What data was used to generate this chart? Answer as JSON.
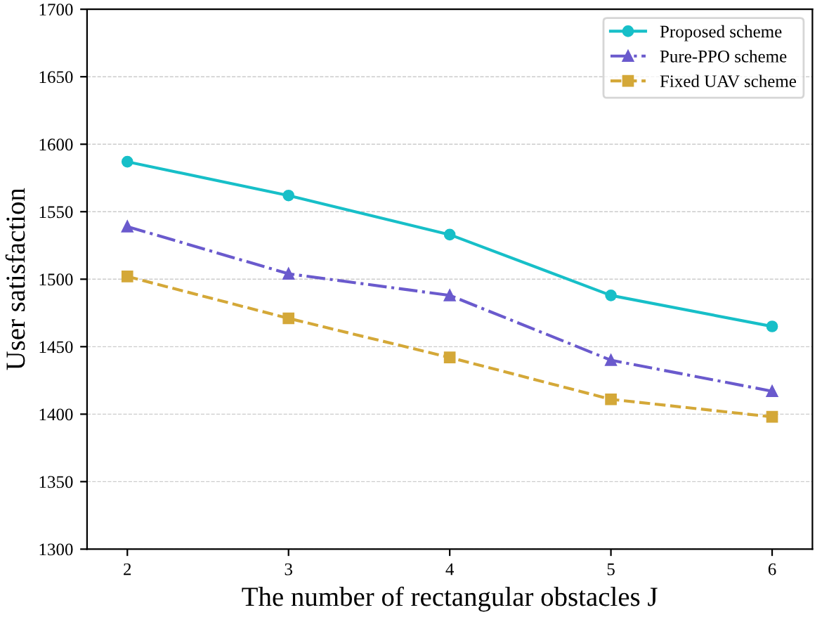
{
  "chart_data": {
    "type": "line",
    "xlabel": "The number of rectangular obstacles J",
    "ylabel": "User satisfaction",
    "x": [
      2,
      3,
      4,
      5,
      6
    ],
    "xlim": [
      1.75,
      6.25
    ],
    "xticks": [
      2,
      3,
      4,
      5,
      6
    ],
    "ylim": [
      1300,
      1700
    ],
    "yticks": [
      1300,
      1350,
      1400,
      1450,
      1500,
      1550,
      1600,
      1650,
      1700
    ],
    "grid": "y",
    "legend": "top right",
    "series": [
      {
        "name": "Proposed scheme",
        "color": "#17bfc8",
        "marker": "circle",
        "line_style": "solid",
        "values": [
          1587,
          1562,
          1533,
          1488,
          1465
        ]
      },
      {
        "name": "Pure-PPO scheme",
        "color": "#6a5acd",
        "marker": "triangle",
        "line_style": "dashdot",
        "values": [
          1539,
          1504,
          1488,
          1440,
          1417
        ]
      },
      {
        "name": "Fixed UAV scheme",
        "color": "#d4a838",
        "marker": "square",
        "line_style": "dashed",
        "values": [
          1502,
          1471,
          1442,
          1411,
          1398
        ]
      }
    ]
  }
}
